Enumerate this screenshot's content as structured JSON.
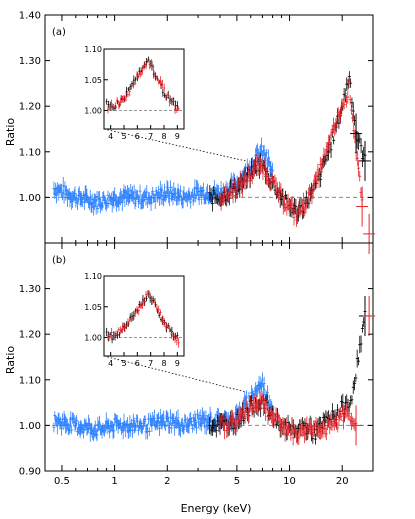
{
  "figure": {
    "xlabel": "Energy (keV)",
    "ylabel": "Ratio",
    "colors": {
      "xis_blue": "#2a7fff",
      "pin_red": "#e8242b",
      "black": "#000000",
      "ref_line": "#888888"
    }
  },
  "chart_data": [
    {
      "type": "scatter",
      "panel_label": "(a)",
      "xscale": "log",
      "xlim": [
        0.4,
        30
      ],
      "ylim": [
        0.9,
        1.4
      ],
      "yticks": [
        1.0,
        1.1,
        1.2,
        1.3,
        1.4
      ],
      "yticklabels": [
        "1.00",
        "1.10",
        "1.20",
        "1.30",
        "1.40"
      ],
      "reference_line": 1.0,
      "series": [
        {
          "color": "blue",
          "x": [
            0.45,
            0.6,
            0.8,
            1.0,
            1.3,
            1.6,
            2.0,
            2.5,
            3.0,
            3.5,
            4.0,
            4.5,
            5.0,
            5.5,
            6.0,
            6.5,
            7.0,
            7.5,
            8.0
          ],
          "y": [
            1.02,
            1.0,
            0.99,
            1.0,
            1.0,
            1.0,
            1.01,
            1.0,
            1.01,
            1.01,
            1.01,
            1.02,
            1.03,
            1.05,
            1.07,
            1.09,
            1.1,
            1.08,
            1.05
          ]
        },
        {
          "color": "black",
          "x": [
            3.5,
            4.0,
            5.0,
            6.0,
            6.5,
            7.0,
            8.0,
            9.0,
            10.0,
            11.0,
            12.0,
            14.0,
            16.0,
            18.0,
            20.0,
            22.0,
            24.0,
            27.0
          ],
          "y": [
            1.0,
            1.0,
            1.02,
            1.05,
            1.07,
            1.07,
            1.03,
            1.0,
            0.98,
            0.97,
            0.98,
            1.02,
            1.08,
            1.14,
            1.2,
            1.27,
            1.14,
            1.08
          ]
        },
        {
          "color": "red",
          "x": [
            4.0,
            5.0,
            6.0,
            6.5,
            7.0,
            8.0,
            9.0,
            10.0,
            11.0,
            12.0,
            14.0,
            16.0,
            18.0,
            20.0,
            22.0,
            26.0
          ],
          "y": [
            1.0,
            1.02,
            1.05,
            1.07,
            1.07,
            1.03,
            1.0,
            0.98,
            0.96,
            0.98,
            1.03,
            1.09,
            1.15,
            1.2,
            1.24,
            0.98
          ]
        }
      ],
      "inset": {
        "xlim": [
          3.5,
          9.5
        ],
        "ylim": [
          0.97,
          1.1
        ],
        "xticks": [
          4,
          5,
          6,
          7,
          8,
          9
        ],
        "yticklabels": [
          "1.00",
          "1.05",
          "1.10"
        ],
        "yticks": [
          1.0,
          1.05,
          1.1
        ],
        "series": [
          {
            "color": "black",
            "x": [
              3.7,
              4.0,
              4.5,
              5.0,
              5.5,
              6.0,
              6.5,
              6.8,
              7.0,
              7.5,
              8.0,
              8.5,
              9.0
            ],
            "y": [
              1.01,
              1.005,
              1.01,
              1.02,
              1.04,
              1.055,
              1.07,
              1.08,
              1.075,
              1.05,
              1.03,
              1.015,
              1.005
            ]
          },
          {
            "color": "red",
            "x": [
              3.8,
              4.2,
              4.7,
              5.2,
              5.7,
              6.2,
              6.6,
              6.9,
              7.2,
              7.7,
              8.2,
              8.7,
              9.1
            ],
            "y": [
              1.005,
              1.01,
              1.015,
              1.025,
              1.045,
              1.06,
              1.075,
              1.08,
              1.07,
              1.045,
              1.025,
              1.01,
              1.0
            ]
          }
        ]
      }
    },
    {
      "type": "scatter",
      "panel_label": "(b)",
      "xscale": "log",
      "xlim": [
        0.4,
        30
      ],
      "ylim": [
        0.9,
        1.4
      ],
      "yticks": [
        0.9,
        1.0,
        1.1,
        1.2,
        1.3
      ],
      "yticklabels": [
        "0.90",
        "1.00",
        "1.10",
        "1.20",
        "1.30"
      ],
      "xticks": [
        0.5,
        1,
        2,
        5,
        10,
        20
      ],
      "xticklabels": [
        "0.5",
        "1",
        "2",
        "5",
        "10",
        "20"
      ],
      "reference_line": 1.0,
      "series": [
        {
          "color": "blue",
          "x": [
            0.45,
            0.6,
            0.8,
            1.0,
            1.3,
            1.6,
            2.0,
            2.5,
            3.0,
            3.5,
            4.0,
            4.5,
            5.0,
            5.5,
            6.0,
            6.5,
            7.0,
            7.5,
            8.0
          ],
          "y": [
            1.01,
            1.0,
            0.99,
            1.0,
            1.0,
            1.0,
            1.01,
            1.0,
            1.01,
            1.01,
            1.01,
            1.01,
            1.02,
            1.04,
            1.06,
            1.08,
            1.09,
            1.06,
            1.04
          ]
        },
        {
          "color": "black",
          "x": [
            3.5,
            4.0,
            5.0,
            6.0,
            6.5,
            7.0,
            8.0,
            9.0,
            10.0,
            11.0,
            12.0,
            14.0,
            16.0,
            18.0,
            20.0,
            22.0,
            27.0
          ],
          "y": [
            1.0,
            1.0,
            1.01,
            1.04,
            1.05,
            1.05,
            1.02,
            1.0,
            0.99,
            0.99,
            1.0,
            0.98,
            1.01,
            1.02,
            1.04,
            1.04,
            1.24
          ]
        },
        {
          "color": "red",
          "x": [
            4.0,
            5.0,
            6.0,
            6.5,
            7.0,
            8.0,
            9.0,
            10.0,
            11.0,
            12.0,
            14.0,
            16.0,
            18.0,
            20.0,
            22.0,
            24.0
          ],
          "y": [
            1.0,
            1.01,
            1.04,
            1.05,
            1.05,
            1.02,
            1.0,
            0.99,
            0.98,
            0.99,
            1.0,
            0.99,
            1.0,
            1.02,
            1.03,
            1.0
          ]
        }
      ],
      "inset": {
        "xlim": [
          3.5,
          9.5
        ],
        "ylim": [
          0.97,
          1.1
        ],
        "xticks": [
          4,
          5,
          6,
          7,
          8,
          9
        ],
        "yticklabels": [
          "1.00",
          "1.05",
          "1.10"
        ],
        "yticks": [
          1.0,
          1.05,
          1.1
        ],
        "series": [
          {
            "color": "black",
            "x": [
              3.7,
              4.0,
              4.5,
              5.0,
              5.5,
              6.0,
              6.5,
              6.8,
              7.0,
              7.5,
              8.0,
              8.5,
              9.0
            ],
            "y": [
              1.005,
              1.0,
              1.005,
              1.015,
              1.03,
              1.045,
              1.06,
              1.07,
              1.065,
              1.045,
              1.025,
              1.01,
              1.0
            ]
          },
          {
            "color": "red",
            "x": [
              3.8,
              4.2,
              4.7,
              5.2,
              5.7,
              6.2,
              6.6,
              6.9,
              7.2,
              7.7,
              8.2,
              8.7,
              9.1
            ],
            "y": [
              1.0,
              1.005,
              1.01,
              1.02,
              1.035,
              1.05,
              1.065,
              1.07,
              1.06,
              1.04,
              1.02,
              1.005,
              0.995
            ]
          }
        ]
      }
    }
  ]
}
